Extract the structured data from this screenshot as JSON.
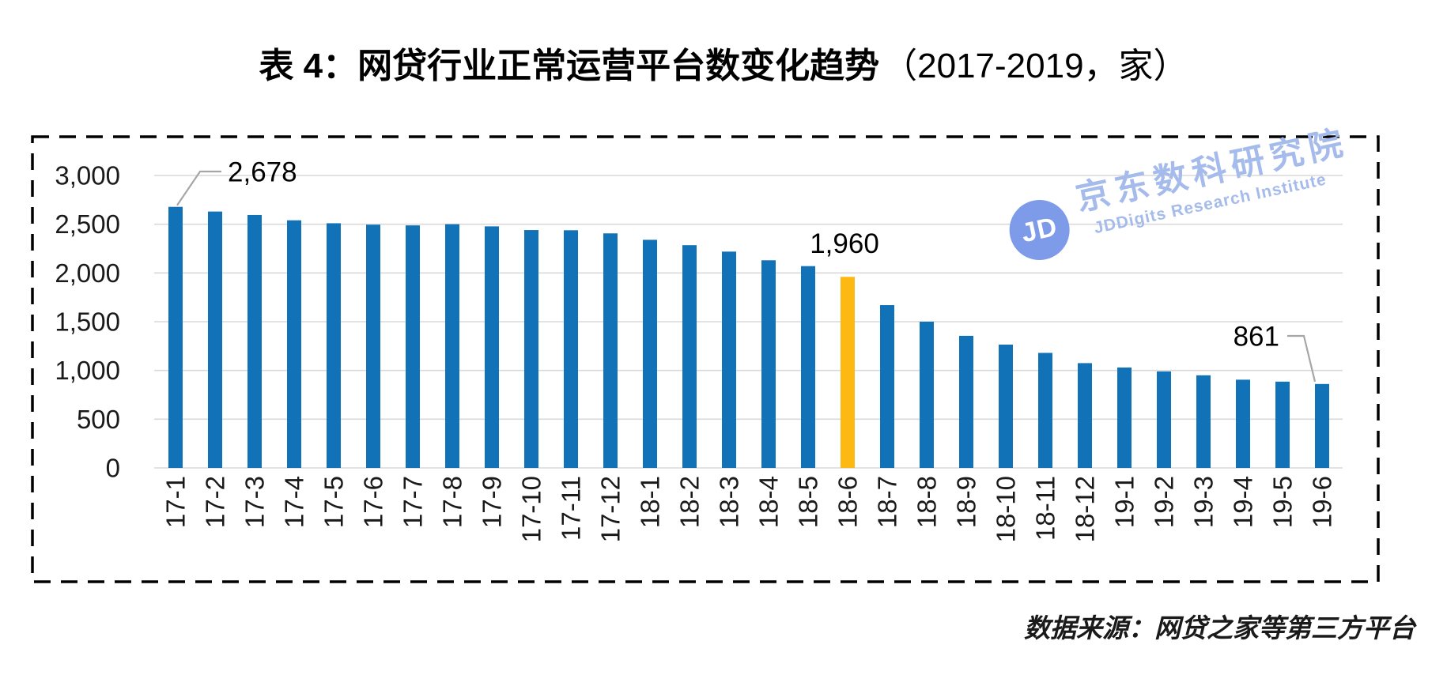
{
  "title": {
    "main": "表 4：网贷行业正常运营平台数变化趋势",
    "paren": "（2017-2019，家）"
  },
  "source_note": "数据来源：网贷之家等第三方平台",
  "watermark": {
    "logo_text": "JD",
    "cn": "京东数科研究院",
    "en": "JDDigits Research Institute",
    "color": "#a5bbec"
  },
  "colors": {
    "bar": "#1172b8",
    "highlight": "#fdb813",
    "gridline": "#d9d9d9",
    "axis_text": "#1a1a1a",
    "frame": "#000000",
    "leader": "#a6a6a6",
    "annotation_text": "#000000"
  },
  "chart_data": {
    "type": "bar",
    "title": "表 4：网贷行业正常运营平台数变化趋势（2017-2019，家）",
    "ylabel": "",
    "xlabel": "",
    "ylim": [
      0,
      3000
    ],
    "grid": "horizontal",
    "legend_position": "none",
    "categories": [
      "17-1",
      "17-2",
      "17-3",
      "17-4",
      "17-5",
      "17-6",
      "17-7",
      "17-8",
      "17-9",
      "17-10",
      "17-11",
      "17-12",
      "18-1",
      "18-2",
      "18-3",
      "18-4",
      "18-5",
      "18-6",
      "18-7",
      "18-8",
      "18-9",
      "18-10",
      "18-11",
      "18-12",
      "19-1",
      "19-2",
      "19-3",
      "19-4",
      "19-5",
      "19-6"
    ],
    "values": [
      2678,
      2630,
      2595,
      2540,
      2510,
      2495,
      2488,
      2500,
      2478,
      2440,
      2438,
      2406,
      2340,
      2285,
      2219,
      2130,
      2070,
      1960,
      1670,
      1500,
      1355,
      1265,
      1180,
      1075,
      1030,
      990,
      950,
      905,
      885,
      861
    ],
    "highlight_index": 17,
    "yticks": [
      {
        "v": 0,
        "label": "0"
      },
      {
        "v": 500,
        "label": "500"
      },
      {
        "v": 1000,
        "label": "1,000"
      },
      {
        "v": 1500,
        "label": "1,500"
      },
      {
        "v": 2000,
        "label": "2,000"
      },
      {
        "v": 2500,
        "label": "2,500"
      },
      {
        "v": 3000,
        "label": "3,000"
      }
    ],
    "annotations": [
      {
        "index": 0,
        "category": "17-1",
        "label": "2,678",
        "style": "leader-up-right"
      },
      {
        "index": 17,
        "category": "18-6",
        "label": "1,960",
        "style": "above"
      },
      {
        "index": 29,
        "category": "19-6",
        "label": "861",
        "style": "leader-from-left"
      }
    ]
  }
}
